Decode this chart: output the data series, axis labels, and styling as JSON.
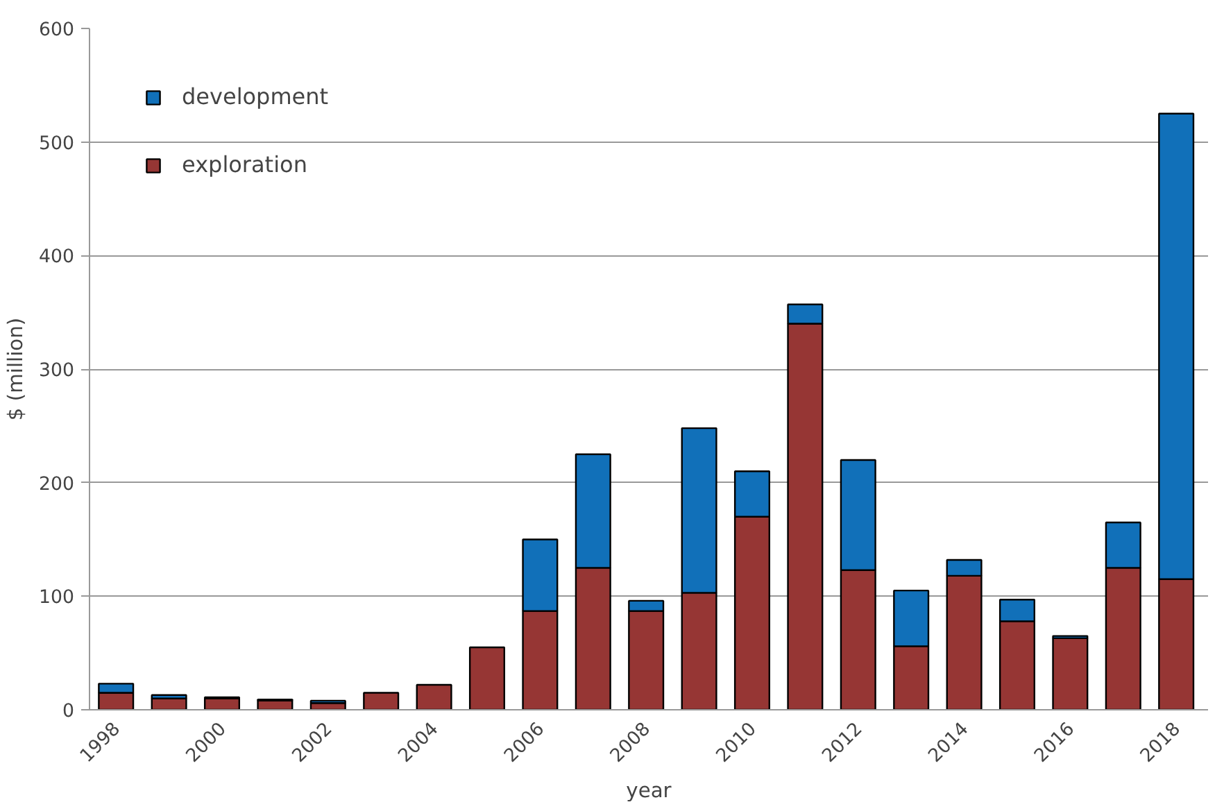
{
  "chart_data": {
    "type": "bar",
    "stacked": true,
    "xlabel": "year",
    "ylabel": "$ (million)",
    "x": [
      1998,
      1999,
      2000,
      2001,
      2002,
      2003,
      2004,
      2005,
      2006,
      2007,
      2008,
      2009,
      2010,
      2011,
      2012,
      2013,
      2014,
      2015,
      2016,
      2017,
      2018
    ],
    "series": [
      {
        "name": "exploration",
        "color": "#963634",
        "values": [
          15,
          10,
          10,
          8,
          6,
          15,
          22,
          55,
          87,
          125,
          87,
          103,
          170,
          340,
          123,
          56,
          118,
          78,
          63,
          125,
          115
        ]
      },
      {
        "name": "development",
        "color": "#1170b9",
        "values": [
          8,
          3,
          1,
          1,
          2,
          null,
          null,
          null,
          63,
          100,
          9,
          145,
          40,
          17,
          97,
          49,
          14,
          19,
          2,
          40,
          410
        ]
      }
    ],
    "xlim": [
      1997.5,
      2018.6
    ],
    "xticks": [
      1998,
      2000,
      2002,
      2004,
      2006,
      2008,
      2010,
      2012,
      2014,
      2016,
      2018
    ],
    "ylim": [
      0,
      600
    ],
    "yticks": [
      0,
      100,
      200,
      300,
      400,
      500,
      600
    ],
    "grid": "y",
    "legend": "top left"
  }
}
